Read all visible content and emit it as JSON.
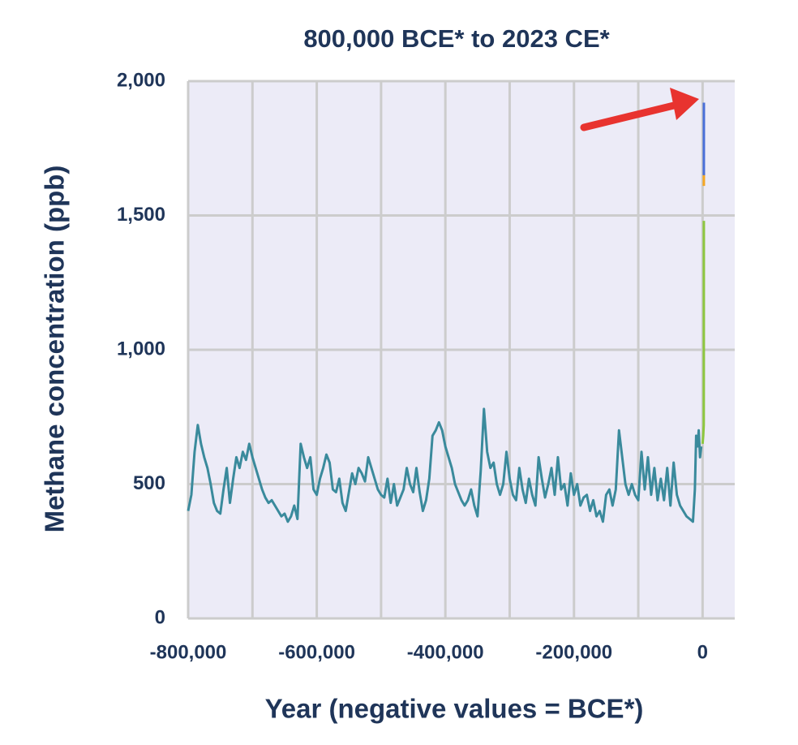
{
  "chart_data": {
    "type": "line",
    "title": "800,000 BCE* to 2023 CE*",
    "x_label": "Year (negative values = BCE*)",
    "y_label": "Methane concentration (ppb)",
    "xlim": [
      -800000,
      50000
    ],
    "xticks": [
      {
        "value": -800000,
        "label": "-800,000"
      },
      {
        "value": -600000,
        "label": "-600,000"
      },
      {
        "value": -400000,
        "label": "-400,000"
      },
      {
        "value": -200000,
        "label": "-200,000"
      },
      0
    ],
    "xgrid": [
      -800000,
      -700000,
      -600000,
      -500000,
      -400000,
      -300000,
      -200000,
      -100000,
      0
    ],
    "ylim": [
      0,
      2000
    ],
    "yticks": [
      0,
      500,
      {
        "value": 1000,
        "label": "1,000"
      },
      {
        "value": 1500,
        "label": "1,500"
      },
      {
        "value": 2000,
        "label": "2,000"
      }
    ],
    "grid": true,
    "series": [
      {
        "color": "#3a8a9c",
        "x": [
          -800000,
          -795000,
          -790000,
          -785000,
          -780000,
          -775000,
          -770000,
          -765000,
          -760000,
          -755000,
          -750000,
          -745000,
          -740000,
          -735000,
          -730000,
          -725000,
          -720000,
          -715000,
          -710000,
          -705000,
          -700000,
          -695000,
          -690000,
          -685000,
          -680000,
          -675000,
          -670000,
          -665000,
          -660000,
          -655000,
          -650000,
          -645000,
          -640000,
          -635000,
          -630000,
          -625000,
          -620000,
          -615000,
          -610000,
          -605000,
          -600000,
          -595000,
          -590000,
          -585000,
          -580000,
          -575000,
          -570000,
          -565000,
          -560000,
          -555000,
          -550000,
          -545000,
          -540000,
          -535000,
          -530000,
          -525000,
          -520000,
          -515000,
          -510000,
          -505000,
          -500000,
          -495000,
          -490000,
          -485000,
          -480000,
          -475000,
          -470000,
          -465000,
          -460000,
          -455000,
          -450000,
          -445000,
          -440000,
          -435000,
          -430000,
          -425000,
          -420000,
          -415000,
          -410000,
          -405000,
          -400000,
          -395000,
          -390000,
          -385000,
          -380000,
          -375000,
          -370000,
          -365000,
          -360000,
          -355000,
          -350000,
          -345000,
          -340000,
          -335000,
          -330000,
          -325000,
          -320000,
          -315000,
          -310000,
          -305000,
          -300000,
          -295000,
          -290000,
          -285000,
          -280000,
          -275000,
          -270000,
          -265000,
          -260000,
          -255000,
          -250000,
          -245000,
          -240000,
          -235000,
          -230000,
          -225000,
          -220000,
          -215000,
          -210000,
          -205000,
          -200000,
          -195000,
          -190000,
          -185000,
          -180000,
          -175000,
          -170000,
          -165000,
          -160000,
          -155000,
          -150000,
          -145000,
          -140000,
          -135000,
          -130000,
          -125000,
          -120000,
          -115000,
          -110000,
          -105000,
          -100000,
          -95000,
          -90000,
          -85000,
          -80000,
          -75000,
          -70000,
          -65000,
          -60000,
          -55000,
          -50000,
          -45000,
          -40000,
          -35000,
          -30000,
          -25000,
          -20000,
          -15000,
          -12000,
          -10000,
          -8000,
          -6000,
          -4000,
          -2000
        ],
        "values": [
          400,
          460,
          620,
          720,
          650,
          600,
          560,
          500,
          430,
          400,
          390,
          480,
          560,
          430,
          520,
          600,
          560,
          620,
          590,
          650,
          600,
          560,
          520,
          480,
          450,
          430,
          440,
          420,
          400,
          380,
          390,
          360,
          380,
          420,
          370,
          650,
          600,
          560,
          600,
          480,
          460,
          520,
          560,
          610,
          580,
          480,
          470,
          520,
          430,
          400,
          470,
          540,
          500,
          560,
          540,
          510,
          600,
          560,
          520,
          480,
          460,
          450,
          520,
          430,
          500,
          420,
          450,
          480,
          560,
          500,
          470,
          560,
          470,
          400,
          440,
          520,
          680,
          700,
          730,
          700,
          640,
          600,
          560,
          500,
          470,
          440,
          420,
          440,
          480,
          420,
          380,
          550,
          780,
          620,
          560,
          580,
          500,
          460,
          500,
          620,
          520,
          460,
          440,
          560,
          480,
          430,
          520,
          460,
          420,
          600,
          520,
          450,
          500,
          560,
          460,
          600,
          480,
          500,
          420,
          540,
          460,
          500,
          420,
          450,
          460,
          400,
          440,
          380,
          400,
          360,
          460,
          480,
          420,
          480,
          700,
          600,
          500,
          460,
          500,
          460,
          440,
          620,
          480,
          600,
          460,
          560,
          440,
          520,
          440,
          560,
          420,
          580,
          460,
          420,
          400,
          380,
          370,
          360,
          480,
          680,
          640,
          700,
          600,
          640
        ]
      },
      {
        "color": "#8dc63f",
        "x": [
          0,
          1000,
          1800,
          1900,
          1950,
          1978
        ],
        "values": [
          650,
          680,
          720,
          900,
          1150,
          1480
        ]
      },
      {
        "color": "#f5a623",
        "x": [
          1983,
          1990
        ],
        "values": [
          1610,
          1660
        ]
      },
      {
        "color": "#4a6fd8",
        "x": [
          1984,
          2000,
          2010,
          2023
        ],
        "values": [
          1650,
          1760,
          1800,
          1920
        ]
      }
    ]
  }
}
